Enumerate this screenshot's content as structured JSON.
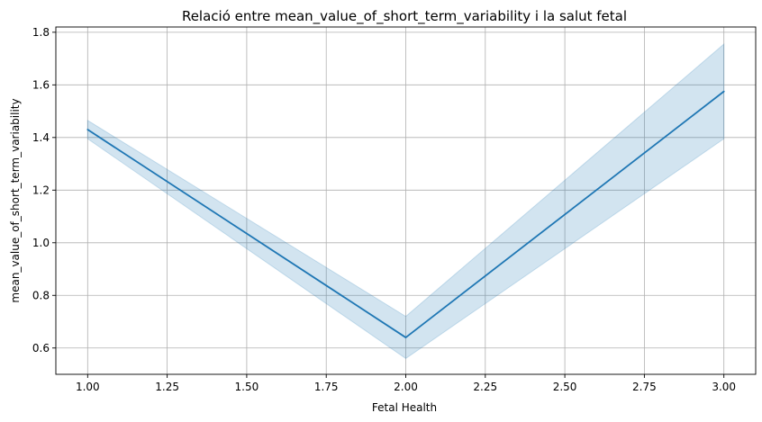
{
  "chart_data": {
    "type": "line",
    "title": "Relació entre mean_value_of_short_term_variability i la salut fetal",
    "xlabel": "Fetal Health",
    "ylabel": "mean_value_of_short_term_variability",
    "x": [
      1.0,
      2.0,
      3.0
    ],
    "series": [
      {
        "values": [
          1.43,
          0.64,
          1.575
        ],
        "ci_lower": [
          1.395,
          0.56,
          1.395
        ],
        "ci_upper": [
          1.465,
          0.72,
          1.755
        ],
        "color": "#1f77b4",
        "band_color": "#1f77b4"
      }
    ],
    "xlim": [
      0.9,
      3.1
    ],
    "ylim": [
      0.5,
      1.82
    ],
    "xticks": [
      "1.00",
      "1.25",
      "1.50",
      "1.75",
      "2.00",
      "2.25",
      "2.50",
      "2.75",
      "3.00"
    ],
    "yticks": [
      "0.6",
      "0.8",
      "1.0",
      "1.2",
      "1.4",
      "1.6",
      "1.8"
    ],
    "grid": true
  }
}
